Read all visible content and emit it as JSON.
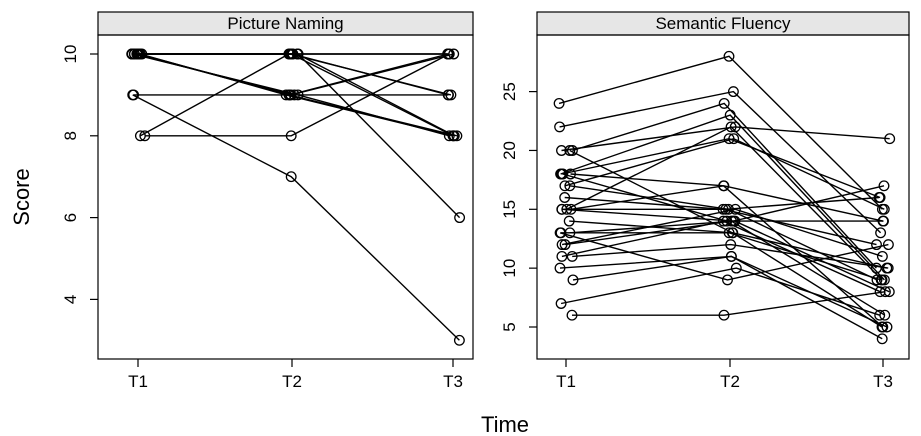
{
  "figure": {
    "ylabel": "Score",
    "xlabel": "Time"
  },
  "chart_data": [
    {
      "type": "line",
      "title": "Picture Naming",
      "categories": [
        "T1",
        "T2",
        "T3"
      ],
      "ylim": [
        3,
        10.5
      ],
      "yticks": [
        4,
        6,
        8,
        10
      ],
      "yticks_rotated": true,
      "ylabel": "Score",
      "grid": false,
      "series": [
        {
          "values": [
            10,
            10,
            10
          ]
        },
        {
          "values": [
            10,
            10,
            8
          ]
        },
        {
          "values": [
            10,
            10,
            8
          ]
        },
        {
          "values": [
            10,
            9,
            8
          ]
        },
        {
          "values": [
            10,
            9,
            8
          ]
        },
        {
          "values": [
            10,
            9,
            9
          ]
        },
        {
          "values": [
            10,
            10,
            9
          ]
        },
        {
          "values": [
            10,
            10,
            6
          ]
        },
        {
          "values": [
            9,
            7,
            3
          ]
        },
        {
          "values": [
            9,
            9,
            10
          ]
        },
        {
          "values": [
            8,
            10,
            10
          ]
        },
        {
          "values": [
            8,
            8,
            10
          ]
        },
        {
          "values": [
            10,
            9,
            10
          ]
        },
        {
          "values": [
            10,
            10,
            9
          ]
        },
        {
          "values": [
            10,
            9,
            8
          ]
        }
      ]
    },
    {
      "type": "line",
      "title": "Semantic Fluency",
      "categories": [
        "T1",
        "T2",
        "T3"
      ],
      "ylim": [
        3,
        29.5
      ],
      "yticks": [
        5,
        10,
        15,
        20,
        25
      ],
      "yticks_rotated": true,
      "grid": false,
      "series": [
        {
          "values": [
            24,
            28,
            15
          ]
        },
        {
          "values": [
            22,
            25,
            13
          ]
        },
        {
          "values": [
            20,
            24,
            10
          ]
        },
        {
          "values": [
            20,
            22,
            21
          ]
        },
        {
          "values": [
            18,
            23,
            9
          ]
        },
        {
          "values": [
            18,
            21,
            16
          ]
        },
        {
          "values": [
            18,
            17,
            5
          ]
        },
        {
          "values": [
            17,
            21,
            15
          ]
        },
        {
          "values": [
            16,
            15,
            12
          ]
        },
        {
          "values": [
            15,
            15,
            16
          ]
        },
        {
          "values": [
            15,
            14,
            17
          ]
        },
        {
          "values": [
            15,
            17,
            14
          ]
        },
        {
          "values": [
            15,
            22,
            9
          ]
        },
        {
          "values": [
            14,
            13,
            10
          ]
        },
        {
          "values": [
            13,
            14,
            8
          ]
        },
        {
          "values": [
            13,
            13,
            9
          ]
        },
        {
          "values": [
            12,
            15,
            11
          ]
        },
        {
          "values": [
            12,
            14,
            6
          ]
        },
        {
          "values": [
            11,
            14,
            8
          ]
        },
        {
          "values": [
            11,
            12,
            10
          ]
        },
        {
          "values": [
            10,
            11,
            5
          ]
        },
        {
          "values": [
            9,
            11,
            4
          ]
        },
        {
          "values": [
            7,
            10,
            6
          ]
        },
        {
          "values": [
            6,
            6,
            8
          ]
        },
        {
          "values": [
            17,
            15,
            9
          ]
        },
        {
          "values": [
            13,
            9,
            12
          ]
        },
        {
          "values": [
            18,
            14,
            14
          ]
        },
        {
          "values": [
            20,
            13,
            5
          ]
        }
      ]
    }
  ]
}
